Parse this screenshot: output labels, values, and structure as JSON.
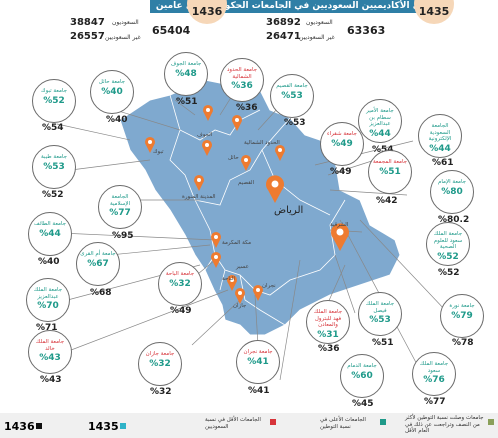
{
  "header": {
    "title": "إجمالي الأكاديميين السعوديين في الجامعات الحكومية خلال عامين",
    "year_left": "1436",
    "year_right": "1435",
    "saudi_label": "السعوديون",
    "non_saudi_label": "غير السعوديين",
    "y1436": {
      "saudi": "38847",
      "non_saudi": "26557",
      "total": "65404"
    },
    "y1435": {
      "saudi": "36892",
      "non_saudi": "26471",
      "total": "63363"
    }
  },
  "map": {
    "riyadh_label": "الرياض",
    "cities": [
      "الجوف",
      "حائل",
      "تبوك",
      "المدينة المنورة",
      "القصيم",
      "الشرقية",
      "مكة المكرمة",
      "عسير",
      "الباحة",
      "جازان",
      "نجران",
      "الحدود الشمالية"
    ]
  },
  "universities": [
    {
      "name": "جامعة الجوف",
      "pct_1436": "%48",
      "pct_1435": "%51",
      "color": "teal"
    },
    {
      "name": "جامعة الحدود الشمالية",
      "pct_1436": "%36",
      "pct_1435": "%36",
      "color": "red"
    },
    {
      "name": "جامعة القصيم",
      "pct_1436": "%53",
      "pct_1435": "%53",
      "color": "teal"
    },
    {
      "name": "جامعة حائل",
      "pct_1436": "%40",
      "pct_1435": "%40",
      "color": "teal"
    },
    {
      "name": "جامعة تبوك",
      "pct_1436": "%52",
      "pct_1435": "%54",
      "color": "teal"
    },
    {
      "name": "جامعة الأمير سطام بن عبدالعزيز",
      "pct_1436": "%44",
      "pct_1435": "%54",
      "color": "teal"
    },
    {
      "name": "الجامعة السعودية الإلكترونية",
      "pct_1436": "%44",
      "pct_1435": "%61",
      "color": "teal"
    },
    {
      "name": "جامعة شقراء",
      "pct_1436": "%49",
      "pct_1435": "%49",
      "color": "red"
    },
    {
      "name": "جامعة المجمعة",
      "pct_1436": "%51",
      "pct_1435": "%42",
      "color": "red"
    },
    {
      "name": "جامعة طيبة",
      "pct_1436": "%53",
      "pct_1435": "%52",
      "color": "teal"
    },
    {
      "name": "جامعة الإمام",
      "pct_1436": "%80",
      "pct_1435": "%80.2",
      "color": "teal"
    },
    {
      "name": "الجامعة الإسلامية",
      "pct_1436": "%77",
      "pct_1435": "%95",
      "color": "teal"
    },
    {
      "name": "جامعة الملك سعود للعلوم الصحية",
      "pct_1436": "%52",
      "pct_1435": "%52",
      "color": "teal"
    },
    {
      "name": "جامعة الطائف",
      "pct_1436": "%44",
      "pct_1435": "%40",
      "color": "teal"
    },
    {
      "name": "جامعة أم القرى",
      "pct_1436": "%67",
      "pct_1435": "%68",
      "color": "teal"
    },
    {
      "name": "جامعة الملك عبدالعزيز",
      "pct_1436": "%70",
      "pct_1435": "%71",
      "color": "teal"
    },
    {
      "name": "جامعة الباحة",
      "pct_1436": "%32",
      "pct_1435": "%49",
      "color": "red"
    },
    {
      "name": "جامعة الملك فهد للبترول والمعادن",
      "pct_1436": "%31",
      "pct_1435": "%36",
      "color": "red"
    },
    {
      "name": "جامعة الملك فيصل",
      "pct_1436": "%53",
      "pct_1435": "%51",
      "color": "teal"
    },
    {
      "name": "جامعة نورة",
      "pct_1436": "%79",
      "pct_1435": "%78",
      "color": "teal"
    },
    {
      "name": "جامعة الملك خالد",
      "pct_1436": "%43",
      "pct_1435": "%43",
      "color": "red"
    },
    {
      "name": "جامعة جازان",
      "pct_1436": "%32",
      "pct_1435": "%32",
      "color": "red"
    },
    {
      "name": "جامعة نجران",
      "pct_1436": "%41",
      "pct_1435": "%41",
      "color": "red"
    },
    {
      "name": "جامعة الدمام",
      "pct_1436": "%60",
      "pct_1435": "%45",
      "color": "teal"
    },
    {
      "name": "جامعة الملك سعود",
      "pct_1436": "%76",
      "pct_1435": "%77",
      "color": "teal"
    }
  ],
  "legend": {
    "year_1436": "1436",
    "year_1435": "1435",
    "item_gray": "جامعات وصلت نسبة التوطين لأكثر من النصف وتراجعت عن ذلك في العام الأقل",
    "item_teal": "الجامعات الأعلى في نسبة التوطين",
    "item_red": "الجامعات الأقل في نسبة السعوديين"
  },
  "colors": {
    "teal": "#1f9a8a",
    "red": "#d7343a",
    "map": "#7fa9cf",
    "header": "#2f7fa6",
    "peach": "#f6d7b8"
  }
}
